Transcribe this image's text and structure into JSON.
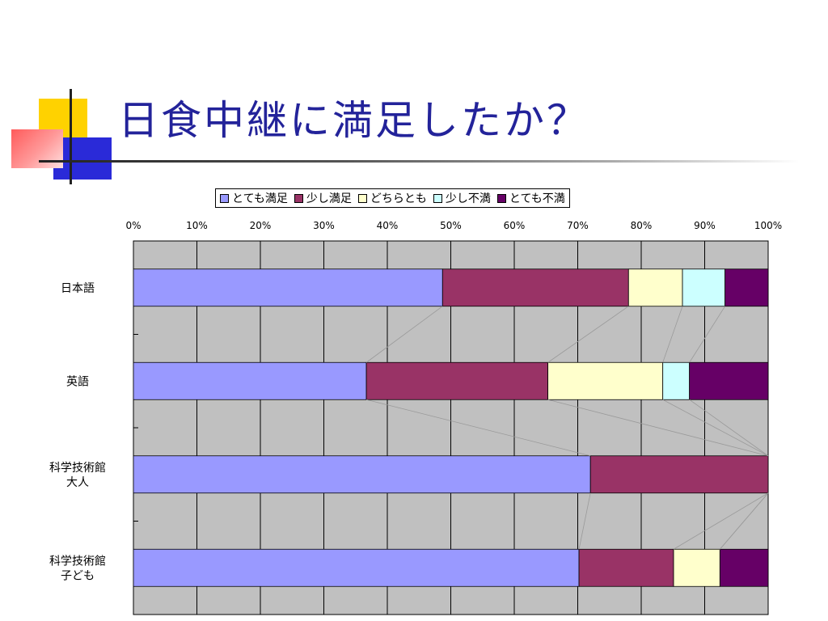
{
  "slide": {
    "title": "日食中継に満足したか？"
  },
  "chart_data": {
    "type": "bar",
    "orientation": "horizontal",
    "stacked": "percent",
    "categories": [
      "日本語",
      "英語",
      "科学技術館 大人",
      "科学技術館 子ども"
    ],
    "category_label_lines": [
      [
        "日本語"
      ],
      [
        "英語"
      ],
      [
        "科学技術館",
        "大人"
      ],
      [
        "科学技術館",
        "子ども"
      ]
    ],
    "series": [
      {
        "name": "とても満足",
        "color": "#9999ff",
        "values": [
          48.7,
          36.7,
          72.0,
          70.2
        ]
      },
      {
        "name": "少し満足",
        "color": "#993366",
        "values": [
          29.3,
          28.6,
          28.0,
          14.9
        ]
      },
      {
        "name": "どちらとも",
        "color": "#ffffcc",
        "values": [
          8.5,
          18.1,
          0,
          7.3
        ]
      },
      {
        "name": "少し不満",
        "color": "#ccffff",
        "values": [
          6.7,
          4.2,
          0,
          0
        ]
      },
      {
        "name": "とても不満",
        "color": "#660066",
        "values": [
          6.8,
          12.4,
          0,
          7.6
        ]
      }
    ],
    "x_ticks": [
      "0%",
      "10%",
      "20%",
      "30%",
      "40%",
      "50%",
      "60%",
      "70%",
      "80%",
      "90%",
      "100%"
    ],
    "xlim": [
      0,
      100
    ],
    "grid": true,
    "plot_background": "#c0c0c0",
    "axis_position": "top",
    "series_lines": true,
    "legend_position": "top"
  }
}
